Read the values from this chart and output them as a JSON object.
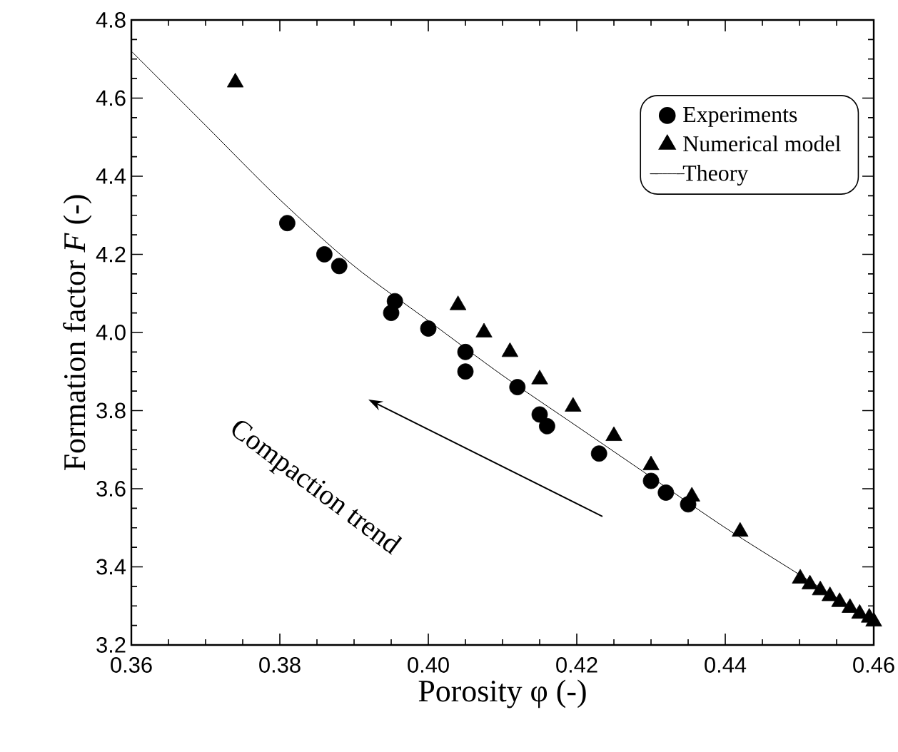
{
  "chart_data": {
    "type": "scatter",
    "xlabel": "Porosity φ (-)",
    "ylabel": "Formation factor *F* (-)",
    "xlim": [
      0.36,
      0.46
    ],
    "xticks": [
      0.36,
      0.38,
      {
        "value": 0.4,
        "label": "0.40"
      },
      0.42,
      0.44,
      0.46
    ],
    "ylim": [
      3.2,
      4.8
    ],
    "yticks": [
      3.2,
      3.4,
      3.6,
      3.8,
      {
        "value": 4.0,
        "label": "4.0"
      },
      4.2,
      4.4,
      4.6,
      4.8
    ],
    "legend": "top right",
    "grid": false,
    "annotations": [
      "Compaction trend"
    ],
    "series": [
      {
        "name": "Experiments",
        "color": "#000000",
        "marker": "circle",
        "x": [
          0.381,
          0.386,
          0.388,
          0.395,
          0.3955,
          0.4,
          0.405,
          0.405,
          0.412,
          0.415,
          0.416,
          0.423,
          0.43,
          0.432,
          0.435
        ],
        "values": [
          4.28,
          4.2,
          4.17,
          4.05,
          4.08,
          4.01,
          3.95,
          3.9,
          3.86,
          3.79,
          3.76,
          3.69,
          3.62,
          3.59,
          3.56
        ]
      },
      {
        "name": "Numerical model",
        "color": "#000000",
        "marker": "triangle",
        "x": [
          0.374,
          0.404,
          0.4075,
          0.411,
          0.415,
          0.4195,
          0.425,
          0.43,
          0.4355,
          0.442,
          0.4501,
          0.4514,
          0.4528,
          0.4541,
          0.4554,
          0.4568,
          0.4581,
          0.4594,
          0.46
        ],
        "values": [
          4.64,
          4.07,
          4.0,
          3.95,
          3.88,
          3.81,
          3.735,
          3.66,
          3.58,
          3.49,
          3.37,
          3.355,
          3.34,
          3.325,
          3.31,
          3.295,
          3.28,
          3.27,
          3.26
        ]
      },
      {
        "name": "Theory",
        "type": "line",
        "color": "#000000",
        "marker": "none",
        "line_style": "solid",
        "x": [
          0.36,
          0.37,
          0.38,
          0.39,
          0.4,
          0.41,
          0.42,
          0.43,
          0.44,
          0.45,
          0.46
        ],
        "values": [
          4.72,
          4.53,
          4.34,
          4.17,
          4.03,
          3.89,
          3.76,
          3.63,
          3.5,
          3.38,
          3.26
        ]
      }
    ]
  }
}
